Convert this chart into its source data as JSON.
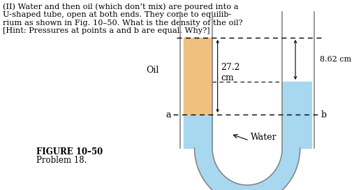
{
  "text_problem": "(II) Water and then oil (which don’t mix) are poured into a\nU-shaped tube, open at both ends. They come to equilib-\nrium as shown in Fig. 10–50. What is the density of the oil?\n[Hint: Pressures at points a and b are equal. Why?]",
  "figure_label": "FIGURE 10–50",
  "problem_label": "Problem 18.",
  "label_oil": "Oil",
  "label_water": "Water",
  "label_a": "a",
  "label_b": "b",
  "measurement_top": "8.62 cm",
  "measurement_side": "27.2\ncm",
  "tube_color": "#c8e6f5",
  "tube_border_color": "#888888",
  "oil_color": "#f0c080",
  "water_color": "#a8d8f0",
  "background_color": "#ffffff",
  "tube_outline_color": "#999999"
}
